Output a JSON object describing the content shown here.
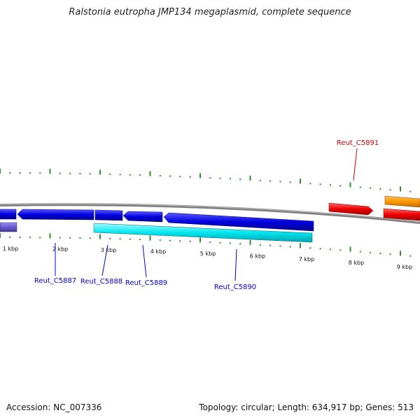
{
  "title": "Ralstonia eutropha JMP134 megaplasmid, complete sequence",
  "footer": {
    "accession": "Accession: NC_007336",
    "summary": "Topology: circular; Length: 634,917 bp; Genes: 513"
  },
  "scale_labels": [
    "1 kbp",
    "2 kbp",
    "3 kbp",
    "4 kbp",
    "5 kbp",
    "6 kbp",
    "7 kbp",
    "8 kbp",
    "9 kbp"
  ],
  "genes": [
    {
      "name": "Reut_C5887",
      "color": "#0000cc"
    },
    {
      "name": "Reut_C5888",
      "color": "#0000cc"
    },
    {
      "name": "Reut_C5889",
      "color": "#0000cc"
    },
    {
      "name": "Reut_C5890",
      "color": "#0000cc"
    },
    {
      "name": "Reut_C5891",
      "color": "#cc0000"
    }
  ],
  "colors": {
    "backbone": "#808080",
    "ticks": "#2e8b2e",
    "reverse_blue": "#1010e0",
    "cyan": "#00e5ee",
    "purple": "#6a5acd",
    "red": "#ee0000",
    "orange": "#ff9900"
  }
}
